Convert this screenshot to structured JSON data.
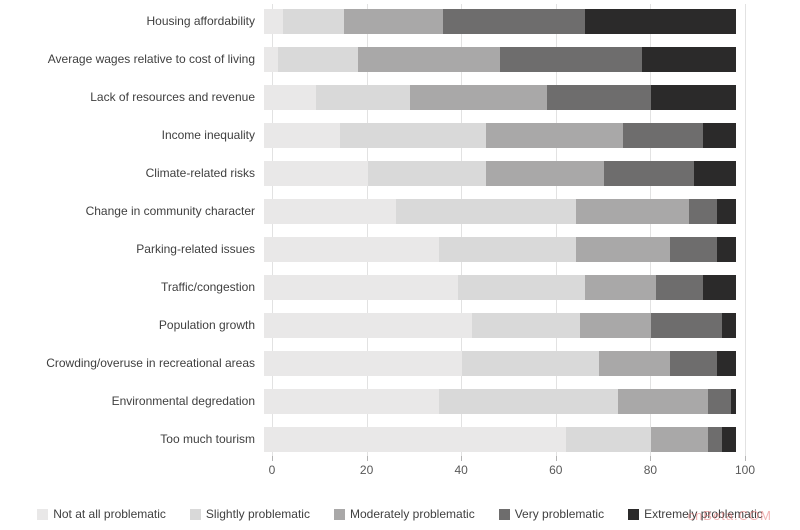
{
  "chart_data": {
    "type": "bar",
    "orientation": "horizontal",
    "stacked": true,
    "title": "",
    "xlabel": "",
    "ylabel": "",
    "xlim": [
      0,
      100
    ],
    "x_ticks": [
      "0",
      "20",
      "40",
      "60",
      "80",
      "100"
    ],
    "grid": true,
    "legend_position": "bottom",
    "categories": [
      "Housing affordability",
      "Average wages relative to cost of living",
      "Lack of resources and revenue",
      "Income inequality",
      "Climate-related risks",
      "Change in community character",
      "Parking-related issues",
      "Traffic/congestion",
      "Population growth",
      "Crowding/overuse in recreational areas",
      "Environmental degredation",
      "Too much tourism"
    ],
    "series": [
      {
        "name": "Not at all problematic",
        "color": "#e9e8e8",
        "values": [
          4,
          3,
          11,
          16,
          22,
          28,
          37,
          41,
          44,
          42,
          37,
          64
        ]
      },
      {
        "name": "Slightly problematic",
        "color": "#d9d9d9",
        "values": [
          13,
          17,
          20,
          31,
          25,
          38,
          29,
          27,
          23,
          29,
          38,
          18
        ]
      },
      {
        "name": "Moderately problematic",
        "color": "#a9a8a8",
        "values": [
          21,
          30,
          29,
          29,
          25,
          24,
          20,
          15,
          15,
          15,
          19,
          12
        ]
      },
      {
        "name": "Very problematic",
        "color": "#6e6d6d",
        "values": [
          30,
          30,
          22,
          17,
          19,
          6,
          10,
          10,
          15,
          10,
          5,
          3
        ]
      },
      {
        "name": "Extremely problematic",
        "color": "#2b2a2a",
        "values": [
          32,
          20,
          18,
          7,
          9,
          4,
          4,
          7,
          3,
          4,
          1,
          3
        ]
      }
    ]
  },
  "watermark": {
    "text": "cnBeta.COM"
  }
}
